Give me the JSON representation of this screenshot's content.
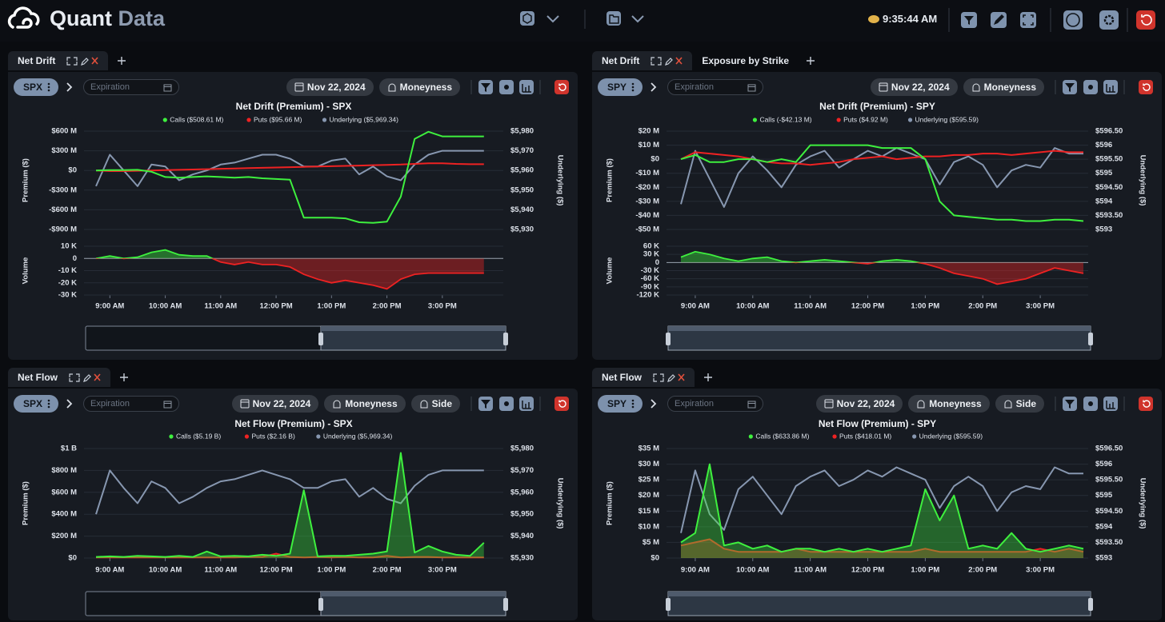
{
  "header": {
    "brand": "Quant",
    "brand_accent": "Data",
    "clock": "9:35:44 AM"
  },
  "panels": [
    {
      "tabs": [
        "Net Drift"
      ],
      "ticker": "SPX",
      "expiration": "Expiration",
      "date": "Nov 22, 2024",
      "buttons": [
        "Moneyness"
      ]
    },
    {
      "tabs": [
        "Net Drift",
        "Exposure by Strike"
      ],
      "ticker": "SPY",
      "expiration": "Expiration",
      "date": "Nov 22, 2024",
      "buttons": [
        "Moneyness"
      ]
    },
    {
      "tabs": [
        "Net Flow"
      ],
      "ticker": "SPX",
      "expiration": "Expiration",
      "date": "Nov 22, 2024",
      "buttons": [
        "Moneyness",
        "Side"
      ]
    },
    {
      "tabs": [
        "Net Flow"
      ],
      "ticker": "SPY",
      "expiration": "Expiration",
      "date": "Nov 22, 2024",
      "buttons": [
        "Moneyness",
        "Side"
      ]
    }
  ],
  "chart_data": [
    {
      "type": "line",
      "title": "Net Drift (Premium) - SPX",
      "ylabel": "Premium ($)",
      "y2label": "Underlying ($)",
      "x": [
        "8:45 AM",
        "9:00 AM",
        "9:15 AM",
        "9:30 AM",
        "9:45 AM",
        "10:00 AM",
        "10:15 AM",
        "10:30 AM",
        "10:45 AM",
        "11:00 AM",
        "11:15 AM",
        "11:30 AM",
        "11:45 AM",
        "12:00 PM",
        "12:15 PM",
        "12:30 PM",
        "12:45 PM",
        "1:00 PM",
        "1:15 PM",
        "1:30 PM",
        "1:45 PM",
        "2:00 PM",
        "2:15 PM",
        "2:30 PM",
        "2:45 PM",
        "3:00 PM",
        "3:15 PM",
        "3:30 PM",
        "3:45 PM"
      ],
      "xlim": [
        "8:32 AM",
        "4:06 PM"
      ],
      "xticks": [
        "9:00 AM",
        "10:00 AM",
        "11:00 AM",
        "12:00 PM",
        "1:00 PM",
        "2:00 PM",
        "3:00 PM"
      ],
      "ylim": [
        -900,
        600
      ],
      "yticks": [
        {
          "value": 600,
          "label": "$600 M"
        },
        {
          "value": 300,
          "label": "$300 M"
        },
        {
          "value": 0,
          "label": "$0"
        },
        {
          "value": -300,
          "label": "-$300 M"
        },
        {
          "value": -600,
          "label": "-$600 M"
        },
        {
          "value": -900,
          "label": "-$900 M"
        }
      ],
      "y2lim": [
        5930,
        5980
      ],
      "y2ticks": [
        {
          "value": 5980,
          "label": "$5,980"
        },
        {
          "value": 5970,
          "label": "$5,970"
        },
        {
          "value": 5960,
          "label": "$5,960"
        },
        {
          "value": 5950,
          "label": "$5,950"
        },
        {
          "value": 5940,
          "label": "$5,940"
        },
        {
          "value": 5930,
          "label": "$5,930"
        }
      ],
      "grid": true,
      "area": false,
      "series": [
        {
          "name": "Calls ($508.61 M)",
          "color": "#3ef03e",
          "values": [
            0,
            5,
            5,
            10,
            -20,
            -100,
            -110,
            -100,
            -90,
            -100,
            -110,
            -100,
            -120,
            -130,
            -140,
            -720,
            -720,
            -720,
            -730,
            -790,
            -800,
            -780,
            -400,
            480,
            590,
            520,
            520,
            520,
            520
          ]
        },
        {
          "name": "Puts ($95.66 M)",
          "color": "#ee2222",
          "values": [
            0,
            -10,
            -10,
            -5,
            0,
            5,
            10,
            15,
            20,
            25,
            30,
            35,
            40,
            45,
            50,
            55,
            60,
            65,
            70,
            75,
            80,
            85,
            90,
            100,
            110,
            110,
            100,
            95,
            95
          ]
        },
        {
          "name": "Underlying ($5,969.34)",
          "color": "#8797b0",
          "axis": "y2",
          "values": [
            5952,
            5968,
            5960,
            5952,
            5963,
            5962,
            5955,
            5958,
            5960,
            5963,
            5964,
            5966,
            5968,
            5968,
            5966,
            5962,
            5962,
            5965,
            5966,
            5958,
            5962,
            5957,
            5955,
            5963,
            5968,
            5970,
            5970,
            5970,
            5970
          ]
        }
      ],
      "volume": {
        "ylabel": "Volume",
        "ylim": [
          -30,
          10
        ],
        "yticks": [
          {
            "value": 10,
            "label": "10 K"
          },
          0,
          {
            "value": -10,
            "label": "-10 K"
          },
          {
            "value": -20,
            "label": "-20 K"
          },
          {
            "value": -30,
            "label": "-30 K"
          }
        ],
        "positive_color": "#3ef03e",
        "negative_color": "#ee2222",
        "values": [
          0,
          2,
          0,
          1,
          5,
          7,
          3,
          2,
          2,
          -3,
          -5,
          -3,
          -5,
          -5,
          -7,
          -13,
          -17,
          -20,
          -18,
          -20,
          -22,
          -25,
          -17,
          -13,
          -12,
          -12,
          -12,
          -12,
          -12
        ]
      }
    },
    {
      "type": "line",
      "title": "Net Drift (Premium) - SPY",
      "ylabel": "Premium ($)",
      "y2label": "Underlying ($)",
      "x": [
        "8:45 AM",
        "9:00 AM",
        "9:15 AM",
        "9:30 AM",
        "9:45 AM",
        "10:00 AM",
        "10:15 AM",
        "10:30 AM",
        "10:45 AM",
        "11:00 AM",
        "11:15 AM",
        "11:30 AM",
        "11:45 AM",
        "12:00 PM",
        "12:15 PM",
        "12:30 PM",
        "12:45 PM",
        "1:00 PM",
        "1:15 PM",
        "1:30 PM",
        "1:45 PM",
        "2:00 PM",
        "2:15 PM",
        "2:30 PM",
        "2:45 PM",
        "3:00 PM",
        "3:15 PM",
        "3:30 PM",
        "3:45 PM"
      ],
      "xlim": [
        "8:30 AM",
        "3:50 PM"
      ],
      "xticks": [
        "9:00 AM",
        "10:00 AM",
        "11:00 AM",
        "12:00 PM",
        "1:00 PM",
        "2:00 PM",
        "3:00 PM"
      ],
      "ylim": [
        -50,
        20
      ],
      "yticks": [
        {
          "value": 20,
          "label": "$20 M"
        },
        {
          "value": 10,
          "label": "$10 M"
        },
        {
          "value": 0,
          "label": "$0"
        },
        {
          "value": -10,
          "label": "-$10 M"
        },
        {
          "value": -20,
          "label": "-$20 M"
        },
        {
          "value": -30,
          "label": "-$30 M"
        },
        {
          "value": -40,
          "label": "-$40 M"
        },
        {
          "value": -50,
          "label": "-$50 M"
        }
      ],
      "y2lim": [
        593,
        596.5
      ],
      "y2ticks": [
        {
          "value": 596.5,
          "label": "$596.50"
        },
        {
          "value": 596,
          "label": "$596"
        },
        {
          "value": 595.5,
          "label": "$595.50"
        },
        {
          "value": 595,
          "label": "$595"
        },
        {
          "value": 594.5,
          "label": "$594.50"
        },
        {
          "value": 594,
          "label": "$594"
        },
        {
          "value": 593.5,
          "label": "$593.50"
        },
        {
          "value": 593,
          "label": "$593"
        }
      ],
      "grid": true,
      "area": false,
      "series": [
        {
          "name": "Calls (-$42.13 M)",
          "color": "#3ef03e",
          "values": [
            0,
            3,
            -2,
            -2,
            0,
            0,
            -2,
            0,
            -2,
            10,
            10,
            10,
            10,
            10,
            8,
            8,
            8,
            0,
            -30,
            -40,
            -41,
            -42,
            -43,
            -43,
            -44,
            -44,
            -43,
            -43,
            -44
          ]
        },
        {
          "name": "Puts ($4.92 M)",
          "color": "#ee2222",
          "values": [
            0,
            5,
            4,
            3,
            2,
            0,
            -2,
            -3,
            -3,
            -4,
            -3,
            -2,
            0,
            1,
            2,
            0,
            1,
            2,
            2,
            3,
            3,
            4,
            4,
            3,
            4,
            5,
            6,
            5,
            5
          ]
        },
        {
          "name": "Underlying ($595.59)",
          "color": "#8797b0",
          "axis": "y2",
          "values": [
            593.9,
            595.8,
            594.8,
            593.8,
            595,
            595.6,
            595.1,
            594.5,
            595.3,
            595.6,
            595.8,
            595.2,
            595.5,
            595.8,
            595.6,
            595.9,
            595.7,
            595.5,
            594.6,
            595.4,
            595.6,
            595.3,
            594.5,
            595.1,
            595.3,
            595.2,
            595.9,
            595.7,
            595.7
          ]
        }
      ],
      "volume": {
        "ylabel": "Volume",
        "ylim": [
          -120,
          60
        ],
        "yticks": [
          {
            "value": 60,
            "label": "60 K"
          },
          {
            "value": 30,
            "label": "30 K"
          },
          0,
          {
            "value": -30,
            "label": "-30 K"
          },
          {
            "value": -60,
            "label": "-60 K"
          },
          {
            "value": -90,
            "label": "-90 K"
          },
          {
            "value": -120,
            "label": "-120 K"
          }
        ],
        "positive_color": "#3ef03e",
        "negative_color": "#ee2222",
        "values": [
          20,
          40,
          30,
          15,
          5,
          15,
          20,
          5,
          0,
          5,
          10,
          5,
          0,
          -5,
          5,
          10,
          5,
          -5,
          -20,
          -40,
          -50,
          -60,
          -80,
          -70,
          -60,
          -40,
          -20,
          -30,
          -40
        ]
      }
    },
    {
      "type": "line",
      "title": "Net Flow (Premium) - SPX",
      "ylabel": "Premium ($)",
      "y2label": "Underlying ($)",
      "x": [
        "8:45 AM",
        "9:00 AM",
        "9:15 AM",
        "9:30 AM",
        "9:45 AM",
        "10:00 AM",
        "10:15 AM",
        "10:30 AM",
        "10:45 AM",
        "11:00 AM",
        "11:15 AM",
        "11:30 AM",
        "11:45 AM",
        "12:00 PM",
        "12:15 PM",
        "12:30 PM",
        "12:45 PM",
        "1:00 PM",
        "1:15 PM",
        "1:30 PM",
        "1:45 PM",
        "2:00 PM",
        "2:15 PM",
        "2:30 PM",
        "2:45 PM",
        "3:00 PM",
        "3:15 PM",
        "3:30 PM",
        "3:45 PM"
      ],
      "xlim": [
        "8:32 AM",
        "4:06 PM"
      ],
      "xticks": [
        "9:00 AM",
        "10:00 AM",
        "11:00 AM",
        "12:00 PM",
        "1:00 PM",
        "2:00 PM",
        "3:00 PM"
      ],
      "ylim": [
        0,
        1000
      ],
      "yticks": [
        {
          "value": 1000,
          "label": "$1 B"
        },
        {
          "value": 800,
          "label": "$800 M"
        },
        {
          "value": 600,
          "label": "$600 M"
        },
        {
          "value": 400,
          "label": "$400 M"
        },
        {
          "value": 200,
          "label": "$200 M"
        },
        {
          "value": 0,
          "label": "$0"
        }
      ],
      "y2lim": [
        5930,
        5980
      ],
      "y2ticks": [
        {
          "value": 5980,
          "label": "$5,980"
        },
        {
          "value": 5970,
          "label": "$5,970"
        },
        {
          "value": 5960,
          "label": "$5,960"
        },
        {
          "value": 5950,
          "label": "$5,950"
        },
        {
          "value": 5940,
          "label": "$5,940"
        },
        {
          "value": 5930,
          "label": "$5,930"
        }
      ],
      "grid": true,
      "area": true,
      "series": [
        {
          "name": "Calls ($5.19 B)",
          "color": "#3ef03e",
          "values": [
            10,
            15,
            10,
            20,
            15,
            10,
            20,
            10,
            60,
            15,
            20,
            15,
            30,
            20,
            40,
            620,
            15,
            20,
            20,
            30,
            40,
            60,
            960,
            50,
            110,
            60,
            30,
            20,
            140
          ]
        },
        {
          "name": "Puts ($2.16 B)",
          "color": "#ee2222",
          "values": [
            5,
            5,
            5,
            5,
            5,
            5,
            5,
            5,
            5,
            5,
            5,
            10,
            10,
            40,
            10,
            5,
            10,
            5,
            10,
            5,
            5,
            20,
            5,
            10,
            10,
            5,
            5,
            5,
            5
          ]
        },
        {
          "name": "Underlying ($5,969.34)",
          "color": "#8797b0",
          "axis": "y2",
          "values": [
            5950,
            5970,
            5962,
            5955,
            5965,
            5962,
            5955,
            5958,
            5962,
            5965,
            5966,
            5968,
            5970,
            5968,
            5966,
            5962,
            5962,
            5965,
            5966,
            5958,
            5962,
            5957,
            5955,
            5963,
            5968,
            5970,
            5970,
            5970,
            5970
          ]
        }
      ]
    },
    {
      "type": "line",
      "title": "Net Flow (Premium) - SPY",
      "ylabel": "Premium ($)",
      "y2label": "Underlying ($)",
      "x": [
        "8:45 AM",
        "9:00 AM",
        "9:15 AM",
        "9:30 AM",
        "9:45 AM",
        "10:00 AM",
        "10:15 AM",
        "10:30 AM",
        "10:45 AM",
        "11:00 AM",
        "11:15 AM",
        "11:30 AM",
        "11:45 AM",
        "12:00 PM",
        "12:15 PM",
        "12:30 PM",
        "12:45 PM",
        "1:00 PM",
        "1:15 PM",
        "1:30 PM",
        "1:45 PM",
        "2:00 PM",
        "2:15 PM",
        "2:30 PM",
        "2:45 PM",
        "3:00 PM",
        "3:15 PM",
        "3:30 PM",
        "3:45 PM"
      ],
      "xlim": [
        "8:30 AM",
        "3:50 PM"
      ],
      "xticks": [
        "9:00 AM",
        "10:00 AM",
        "11:00 AM",
        "12:00 PM",
        "1:00 PM",
        "2:00 PM",
        "3:00 PM"
      ],
      "ylim": [
        0,
        35
      ],
      "yticks": [
        {
          "value": 35,
          "label": "$35 M"
        },
        {
          "value": 30,
          "label": "$30 M"
        },
        {
          "value": 25,
          "label": "$25 M"
        },
        {
          "value": 20,
          "label": "$20 M"
        },
        {
          "value": 15,
          "label": "$15 M"
        },
        {
          "value": 10,
          "label": "$10 M"
        },
        {
          "value": 5,
          "label": "$5 M"
        },
        {
          "value": 0,
          "label": "$0"
        }
      ],
      "y2lim": [
        593,
        596.5
      ],
      "y2ticks": [
        {
          "value": 596.5,
          "label": "$596.50"
        },
        {
          "value": 596,
          "label": "$596"
        },
        {
          "value": 595.5,
          "label": "$595.50"
        },
        {
          "value": 595,
          "label": "$595"
        },
        {
          "value": 594.5,
          "label": "$594.50"
        },
        {
          "value": 594,
          "label": "$594"
        },
        {
          "value": 593.5,
          "label": "$593.50"
        },
        {
          "value": 593,
          "label": "$593"
        }
      ],
      "grid": true,
      "area": true,
      "series": [
        {
          "name": "Calls ($633.86 M)",
          "color": "#3ef03e",
          "values": [
            5,
            8,
            30,
            4,
            5,
            3,
            4,
            2,
            3,
            3,
            2,
            3,
            2,
            3,
            2,
            3,
            4,
            22,
            12,
            20,
            3,
            4,
            3,
            8,
            3,
            2,
            3,
            4,
            3
          ]
        },
        {
          "name": "Puts ($418.01 M)",
          "color": "#ee2222",
          "values": [
            4,
            5,
            6,
            3,
            2,
            2,
            2,
            2,
            3,
            2,
            2,
            2,
            2,
            2,
            2,
            2,
            2,
            3,
            2,
            2,
            2,
            2,
            2,
            2,
            2,
            3,
            2,
            3,
            2
          ]
        },
        {
          "name": "Underlying ($595.59)",
          "color": "#8797b0",
          "axis": "y2",
          "values": [
            593.8,
            595.8,
            594.4,
            593.9,
            595.2,
            595.6,
            595,
            594.4,
            595.3,
            595.6,
            595.8,
            595.3,
            595.5,
            595.8,
            595.6,
            595.9,
            595.7,
            595.5,
            594.6,
            595.3,
            595.6,
            595.3,
            594.5,
            595.1,
            595.3,
            595.2,
            595.9,
            595.7,
            595.7
          ]
        }
      ]
    }
  ]
}
